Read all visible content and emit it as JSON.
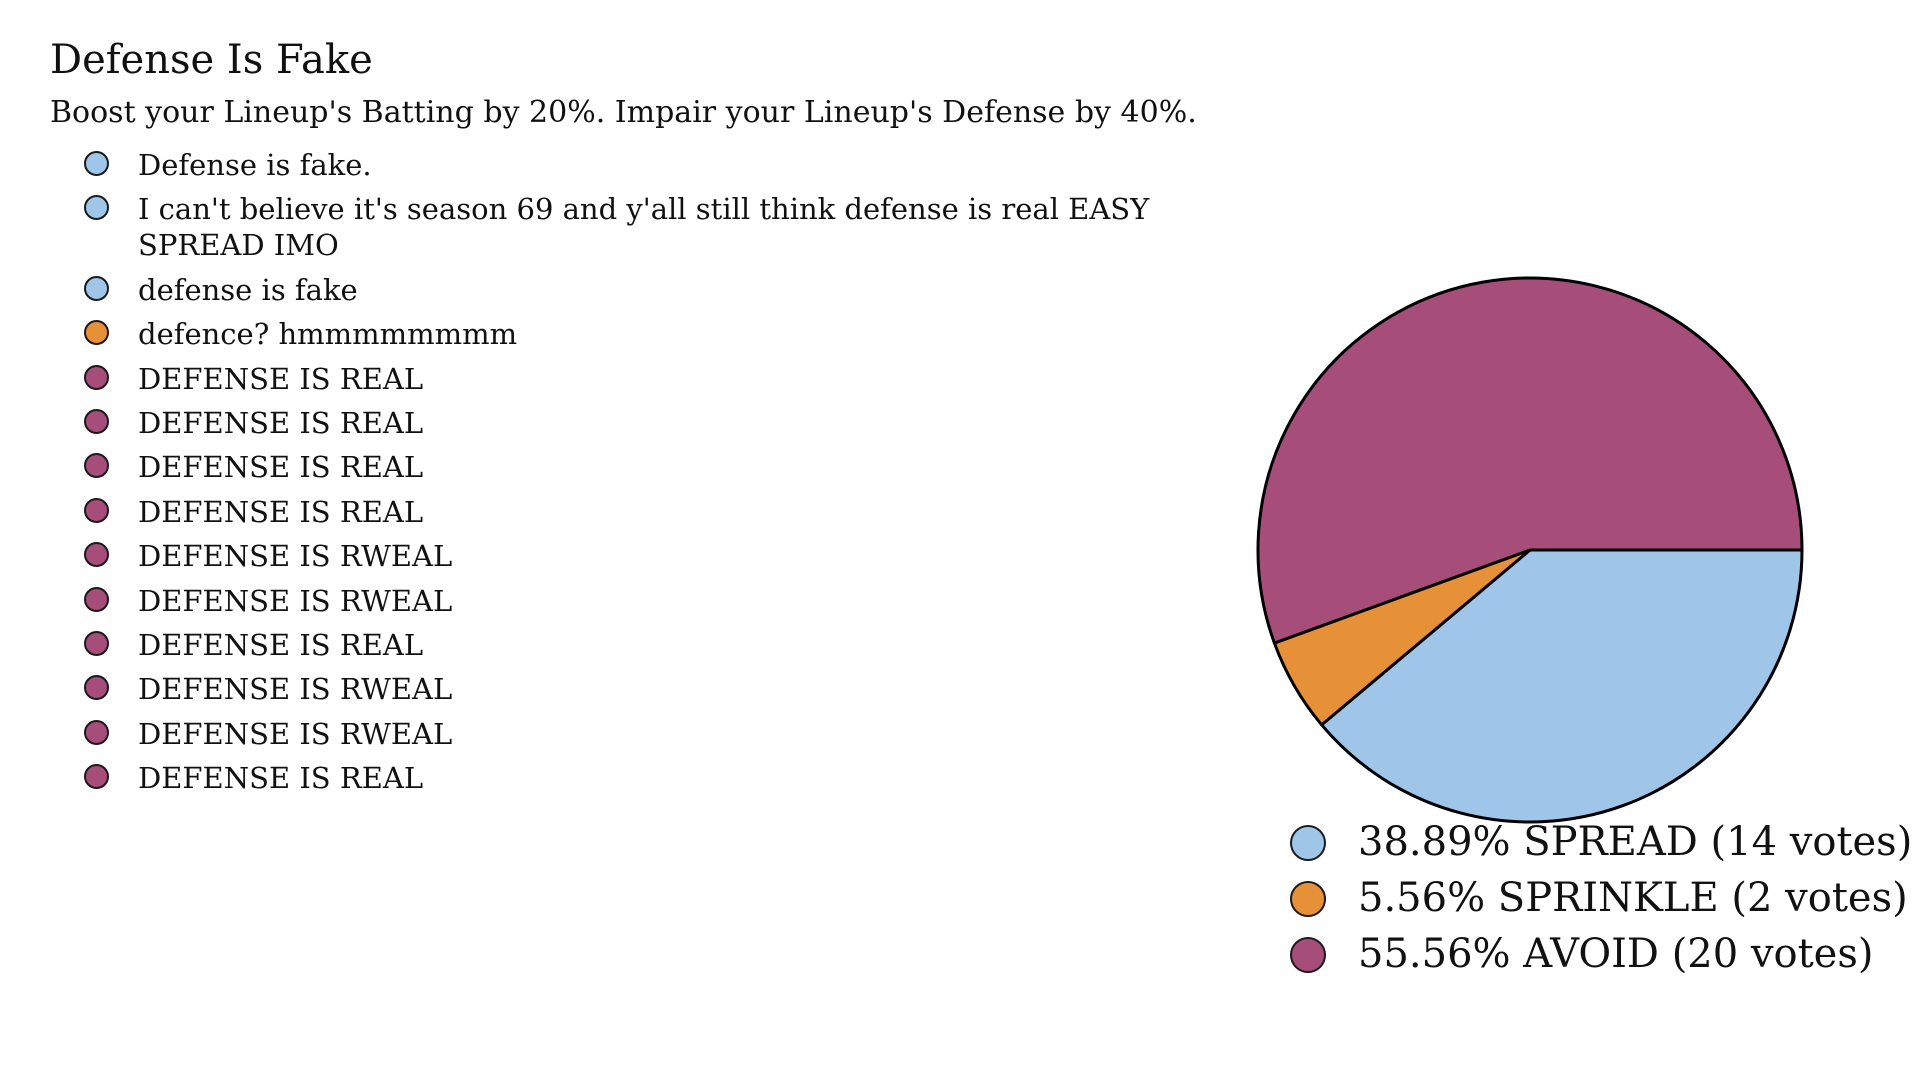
{
  "poll": {
    "title": "Defense Is Fake",
    "description": "Boost your Lineup's Batting by 20%. Impair your Lineup's Defense by 40%."
  },
  "comments": [
    {
      "text": "Defense is fake.",
      "choice": "SPREAD"
    },
    {
      "text": "I can't believe it's season 69 and y'all still think defense is real EASY SPREAD IMO",
      "choice": "SPREAD"
    },
    {
      "text": "defense is fake",
      "choice": "SPREAD"
    },
    {
      "text": "defence? hmmmmmmmm",
      "choice": "SPRINKLE"
    },
    {
      "text": "DEFENSE IS REAL",
      "choice": "AVOID"
    },
    {
      "text": "DEFENSE IS REAL",
      "choice": "AVOID"
    },
    {
      "text": "DEFENSE IS REAL",
      "choice": "AVOID"
    },
    {
      "text": "DEFENSE IS REAL",
      "choice": "AVOID"
    },
    {
      "text": "DEFENSE IS RWEAL",
      "choice": "AVOID"
    },
    {
      "text": "DEFENSE IS RWEAL",
      "choice": "AVOID"
    },
    {
      "text": "DEFENSE IS REAL",
      "choice": "AVOID"
    },
    {
      "text": "DEFENSE IS RWEAL",
      "choice": "AVOID"
    },
    {
      "text": "DEFENSE IS RWEAL",
      "choice": "AVOID"
    },
    {
      "text": "DEFENSE IS REAL",
      "choice": "AVOID"
    }
  ],
  "colors": {
    "SPREAD": "#9fc5e8",
    "SPRINKLE": "#e69138",
    "AVOID": "#a64d79",
    "outline": "#000000"
  },
  "chart_data": {
    "type": "pie",
    "categories": [
      "SPREAD",
      "SPRINKLE",
      "AVOID"
    ],
    "values": [
      14,
      2,
      20
    ],
    "percentages": [
      38.89,
      5.56,
      55.56
    ],
    "legend_labels": [
      "38.89% SPREAD (14 votes)",
      "5.56% SPRINKLE (2 votes)",
      "55.56% AVOID (20 votes)"
    ],
    "start_angle_deg": 0,
    "direction": "clockwise",
    "legend_position": "bottom"
  }
}
